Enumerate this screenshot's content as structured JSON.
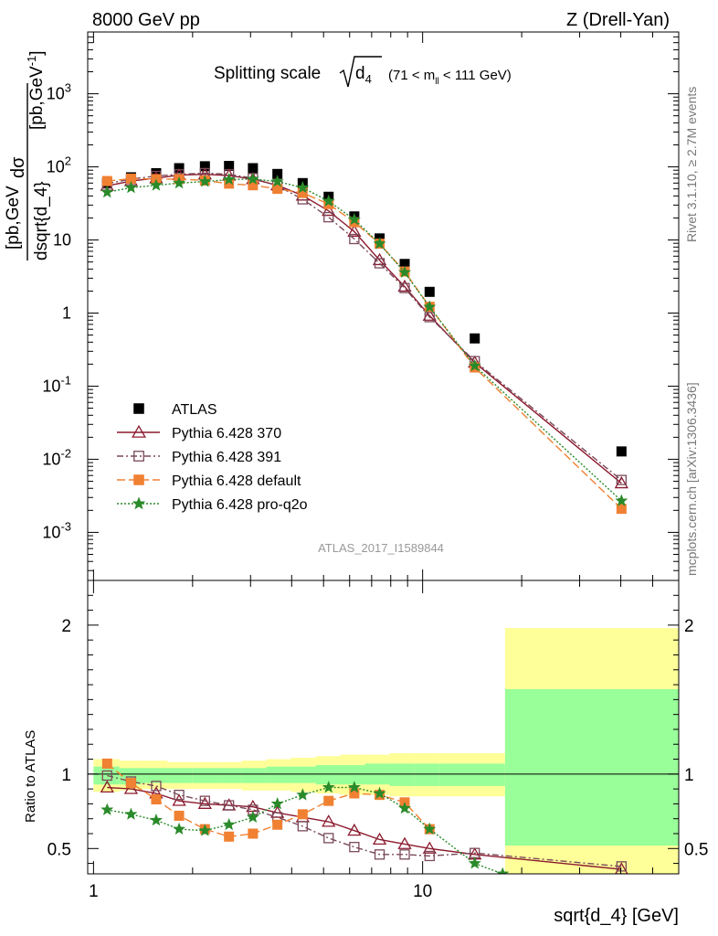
{
  "header": {
    "left": "8000 GeV pp",
    "right": "Z (Drell-Yan)",
    "side_top": "Rivet 3.1.10, ≥ 2.7M events",
    "side_bottom": "mcplots.cern.ch [arXiv:1306.3436]",
    "watermark": "ATLAS_2017_I1589844"
  },
  "chart_data": [
    {
      "type": "scatter",
      "title": {
        "prefix": "Splitting scale",
        "symbol": "d",
        "sub": "4",
        "cut_pre": "(71 < m",
        "cut_sub": "ll",
        "cut_post": " < 111 GeV)"
      },
      "ylabel": {
        "num": "dσ",
        "den": "dsqrt{d_4}",
        "unit_pre": "[pb,GeV",
        "unit_sup": "-1",
        "unit_post": "]"
      },
      "y_scale": "log",
      "x_scale": "log",
      "xlim": [
        0.96,
        60
      ],
      "ylim": [
        0.00022,
        7000
      ],
      "y_ticks": [
        {
          "v": 0.001,
          "base": "10",
          "exp": "-3"
        },
        {
          "v": 0.01,
          "base": "10",
          "exp": "-2"
        },
        {
          "v": 0.1,
          "base": "10",
          "exp": "-1"
        },
        {
          "v": 1,
          "base": "1",
          "exp": ""
        },
        {
          "v": 10,
          "base": "10",
          "exp": ""
        },
        {
          "v": 100,
          "base": "10",
          "exp": "2"
        },
        {
          "v": 1000,
          "base": "10",
          "exp": "3"
        }
      ],
      "x": [
        1.1,
        1.3,
        1.55,
        1.82,
        2.18,
        2.58,
        3.05,
        3.62,
        4.32,
        5.18,
        6.2,
        7.4,
        8.82,
        10.5,
        14.4,
        40.2
      ],
      "series": [
        {
          "name": "ATLAS",
          "color": "#000000",
          "marker": "square",
          "dash": "",
          "values": [
            60,
            72,
            82,
            96,
            102,
            103,
            96,
            80,
            60,
            39,
            21,
            10.5,
            4.7,
            1.95,
            0.45,
            0.0128
          ]
        },
        {
          "name": "Pythia 6.428 370",
          "color": "#8b1a2e",
          "marker": "triangle-open",
          "dash": "",
          "values": [
            55,
            64,
            70,
            77,
            79,
            76,
            68,
            56,
            40.5,
            25,
            13,
            5.3,
            2.3,
            0.92,
            0.21,
            0.0047
          ]
        },
        {
          "name": "Pythia 6.428 391",
          "color": "#7a4a5a",
          "marker": "square-open",
          "dash": "7,3,2,3",
          "values": [
            59,
            68,
            75,
            79,
            82,
            79,
            70,
            55,
            36,
            20.5,
            10.3,
            4.8,
            2.2,
            0.88,
            0.22,
            0.0052
          ]
        },
        {
          "name": "Pythia 6.428 default",
          "color": "#f08032",
          "marker": "square",
          "dash": "9,4",
          "values": [
            64,
            69,
            68,
            68,
            65,
            59,
            56,
            50,
            44,
            31,
            17.5,
            8.9,
            3.7,
            1.22,
            0.18,
            0.0021
          ]
        },
        {
          "name": "Pythia 6.428 pro-q2o",
          "color": "#2a8a2a",
          "marker": "star",
          "dash": "2,2",
          "values": [
            45,
            52,
            56,
            60,
            63,
            67,
            68,
            63,
            52,
            34,
            19,
            8.9,
            3.6,
            1.21,
            0.19,
            0.0027
          ]
        }
      ]
    },
    {
      "type": "scatter",
      "ylabel": "Ratio to ATLAS",
      "y_scale": "linear",
      "x_scale": "log",
      "xlim": [
        0.96,
        60
      ],
      "ylim": [
        0.33,
        2.3
      ],
      "xlabel": "sqrt{d_4} [GeV]",
      "x_ticks": [
        {
          "v": 1,
          "label": "1"
        },
        {
          "v": 10,
          "label": "10"
        }
      ],
      "y_ticks": [
        {
          "v": 0.5,
          "label": "0.5"
        },
        {
          "v": 1,
          "label": "1"
        },
        {
          "v": 2,
          "label": "2"
        }
      ],
      "bands": {
        "yellow_color": "#ffff99",
        "green_color": "#99ff99",
        "bins": [
          {
            "x0": 1.0,
            "x1": 1.2,
            "yl": 0.88,
            "yh": 1.1,
            "gl": 0.93,
            "gh": 1.05
          },
          {
            "x0": 1.2,
            "x1": 1.4,
            "yl": 0.89,
            "yh": 1.09,
            "gl": 0.93,
            "gh": 1.04
          },
          {
            "x0": 1.4,
            "x1": 1.68,
            "yl": 0.9,
            "yh": 1.09,
            "gl": 0.94,
            "gh": 1.04
          },
          {
            "x0": 1.68,
            "x1": 2.0,
            "yl": 0.9,
            "yh": 1.08,
            "gl": 0.94,
            "gh": 1.04
          },
          {
            "x0": 2.0,
            "x1": 2.38,
            "yl": 0.9,
            "yh": 1.08,
            "gl": 0.94,
            "gh": 1.04
          },
          {
            "x0": 2.38,
            "x1": 2.82,
            "yl": 0.9,
            "yh": 1.08,
            "gl": 0.94,
            "gh": 1.04
          },
          {
            "x0": 2.82,
            "x1": 3.35,
            "yl": 0.89,
            "yh": 1.09,
            "gl": 0.94,
            "gh": 1.04
          },
          {
            "x0": 3.35,
            "x1": 3.98,
            "yl": 0.89,
            "yh": 1.1,
            "gl": 0.94,
            "gh": 1.05
          },
          {
            "x0": 3.98,
            "x1": 4.73,
            "yl": 0.88,
            "yh": 1.11,
            "gl": 0.94,
            "gh": 1.05
          },
          {
            "x0": 4.73,
            "x1": 5.62,
            "yl": 0.87,
            "yh": 1.12,
            "gl": 0.93,
            "gh": 1.06
          },
          {
            "x0": 5.62,
            "x1": 6.68,
            "yl": 0.86,
            "yh": 1.13,
            "gl": 0.93,
            "gh": 1.06
          },
          {
            "x0": 6.68,
            "x1": 7.94,
            "yl": 0.86,
            "yh": 1.13,
            "gl": 0.93,
            "gh": 1.07
          },
          {
            "x0": 7.94,
            "x1": 9.44,
            "yl": 0.85,
            "yh": 1.14,
            "gl": 0.92,
            "gh": 1.07
          },
          {
            "x0": 9.44,
            "x1": 11.2,
            "yl": 0.85,
            "yh": 1.14,
            "gl": 0.92,
            "gh": 1.07
          },
          {
            "x0": 11.2,
            "x1": 17.8,
            "yl": 0.85,
            "yh": 1.14,
            "gl": 0.92,
            "gh": 1.07
          },
          {
            "x0": 17.8,
            "x1": 60,
            "yl": 0.0,
            "yh": 1.98,
            "gl": 0.52,
            "gh": 1.57
          }
        ]
      },
      "series": [
        {
          "name": "Pythia 6.428 370",
          "color": "#8b1a2e",
          "marker": "triangle-open",
          "dash": "",
          "x": [
            1.1,
            1.3,
            1.55,
            1.82,
            2.18,
            2.58,
            3.05,
            3.62,
            4.32,
            5.18,
            6.2,
            7.4,
            8.82,
            10.5,
            14.4,
            40.2
          ],
          "values": [
            0.91,
            0.9,
            0.87,
            0.82,
            0.8,
            0.79,
            0.78,
            0.74,
            0.71,
            0.68,
            0.62,
            0.56,
            0.53,
            0.5,
            0.46,
            0.36
          ]
        },
        {
          "name": "Pythia 6.428 391",
          "color": "#7a4a5a",
          "marker": "square-open",
          "dash": "7,3,2,3",
          "x": [
            1.1,
            1.3,
            1.55,
            1.82,
            2.18,
            2.58,
            3.05,
            3.62,
            4.32,
            5.18,
            6.2,
            7.4,
            8.82,
            10.5,
            14.4,
            40.2
          ],
          "values": [
            0.99,
            0.95,
            0.92,
            0.86,
            0.82,
            0.79,
            0.76,
            0.71,
            0.65,
            0.57,
            0.51,
            0.46,
            0.46,
            0.45,
            0.47,
            0.38
          ]
        },
        {
          "name": "Pythia 6.428 default",
          "color": "#f08032",
          "marker": "square",
          "dash": "9,4",
          "x": [
            1.1,
            1.3,
            1.55,
            1.82,
            2.18,
            2.58,
            3.05,
            3.62,
            4.32,
            5.18,
            6.2,
            7.4,
            8.82,
            10.5
          ],
          "values": [
            1.07,
            0.94,
            0.83,
            0.72,
            0.63,
            0.58,
            0.6,
            0.66,
            0.73,
            0.82,
            0.87,
            0.86,
            0.81,
            0.63
          ]
        },
        {
          "name": "Pythia 6.428 pro-q2o",
          "color": "#2a8a2a",
          "marker": "star",
          "dash": "2,2",
          "x": [
            1.1,
            1.3,
            1.55,
            1.82,
            2.18,
            2.58,
            3.05,
            3.62,
            4.32,
            5.18,
            6.2,
            7.4,
            8.82,
            10.5,
            14.4,
            17.5
          ],
          "values": [
            0.76,
            0.73,
            0.69,
            0.63,
            0.62,
            0.66,
            0.71,
            0.8,
            0.86,
            0.91,
            0.91,
            0.87,
            0.77,
            0.63,
            0.4,
            0.33
          ]
        }
      ]
    }
  ]
}
